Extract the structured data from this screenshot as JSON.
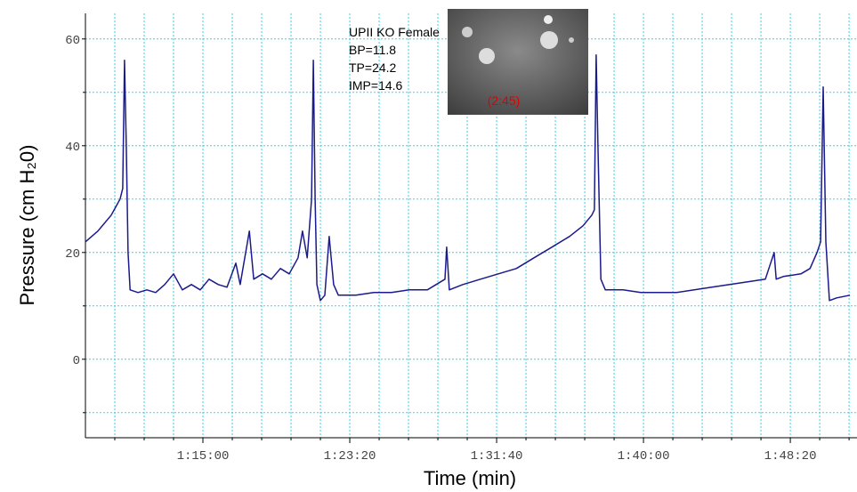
{
  "chart_data": {
    "type": "line",
    "x_label": "Time (min)",
    "y_label": "Pressure (cm H₂0)",
    "annotations": [
      "UPII KO Female",
      "BP=11.8",
      "TP=24.2",
      "IMP=14.6"
    ],
    "inset_label": "(2:45)",
    "x": [
      4100,
      4142,
      4188,
      4218,
      4227,
      4233,
      4239,
      4245,
      4252,
      4279,
      4309,
      4339,
      4370,
      4400,
      4430,
      4461,
      4491,
      4521,
      4552,
      4582,
      4612,
      4627,
      4658,
      4673,
      4703,
      4733,
      4764,
      4794,
      4824,
      4839,
      4855,
      4870,
      4876,
      4882,
      4888,
      4900,
      4915,
      4930,
      4945,
      4961,
      4991,
      5021,
      5082,
      5142,
      5203,
      5264,
      5324,
      5330,
      5339,
      5385,
      5445,
      5506,
      5567,
      5627,
      5688,
      5748,
      5794,
      5824,
      5833,
      5839,
      5845,
      5855,
      5870,
      5930,
      5991,
      6052,
      6112,
      6173,
      6233,
      6294,
      6355,
      6415,
      6445,
      6452,
      6476,
      6536,
      6567,
      6591,
      6603,
      6612,
      6621,
      6633,
      6658,
      6703
    ],
    "series": [
      {
        "color": "#1a1a8c",
        "values": [
          22,
          24,
          27,
          30,
          32,
          56,
          40,
          20,
          13,
          12.5,
          13,
          12.5,
          14,
          16,
          13,
          14,
          13,
          15,
          14,
          13.5,
          18,
          14,
          24,
          15,
          16,
          15,
          17,
          16,
          19,
          24,
          19,
          30,
          56,
          30,
          14,
          11,
          12,
          23,
          14,
          12,
          12,
          12,
          12.5,
          12.5,
          13,
          13,
          15,
          21,
          13,
          14,
          15,
          16,
          17,
          19,
          21,
          23,
          25,
          27,
          28,
          57,
          40,
          15,
          13,
          13,
          12.5,
          12.5,
          12.5,
          13,
          13.5,
          14,
          14.5,
          15,
          20,
          15,
          15.5,
          16,
          17,
          20,
          22,
          51,
          22,
          11,
          11.5,
          12
        ]
      }
    ],
    "xlim": [
      4100,
      6727
    ],
    "ylim": [
      -14.7,
      64.8
    ],
    "xticks": [
      {
        "value": 4500,
        "label": "1:15:00"
      },
      {
        "value": 5000,
        "label": "1:23:20"
      },
      {
        "value": 5500,
        "label": "1:31:40"
      },
      {
        "value": 6000,
        "label": "1:40:00"
      },
      {
        "value": 6500,
        "label": "1:48:20"
      }
    ],
    "yticks": [
      0,
      20,
      40,
      60
    ],
    "xminor_ticks": [
      4200,
      4300,
      4400,
      4600,
      4700,
      4800,
      4900,
      5100,
      5200,
      5300,
      5400,
      5600,
      5700,
      5800,
      5900,
      6100,
      6200,
      6300,
      6400,
      6600,
      6700
    ],
    "yminor_ticks": [
      -10,
      10,
      30,
      50
    ],
    "grid": true,
    "grid_color": "#33d6e6"
  }
}
